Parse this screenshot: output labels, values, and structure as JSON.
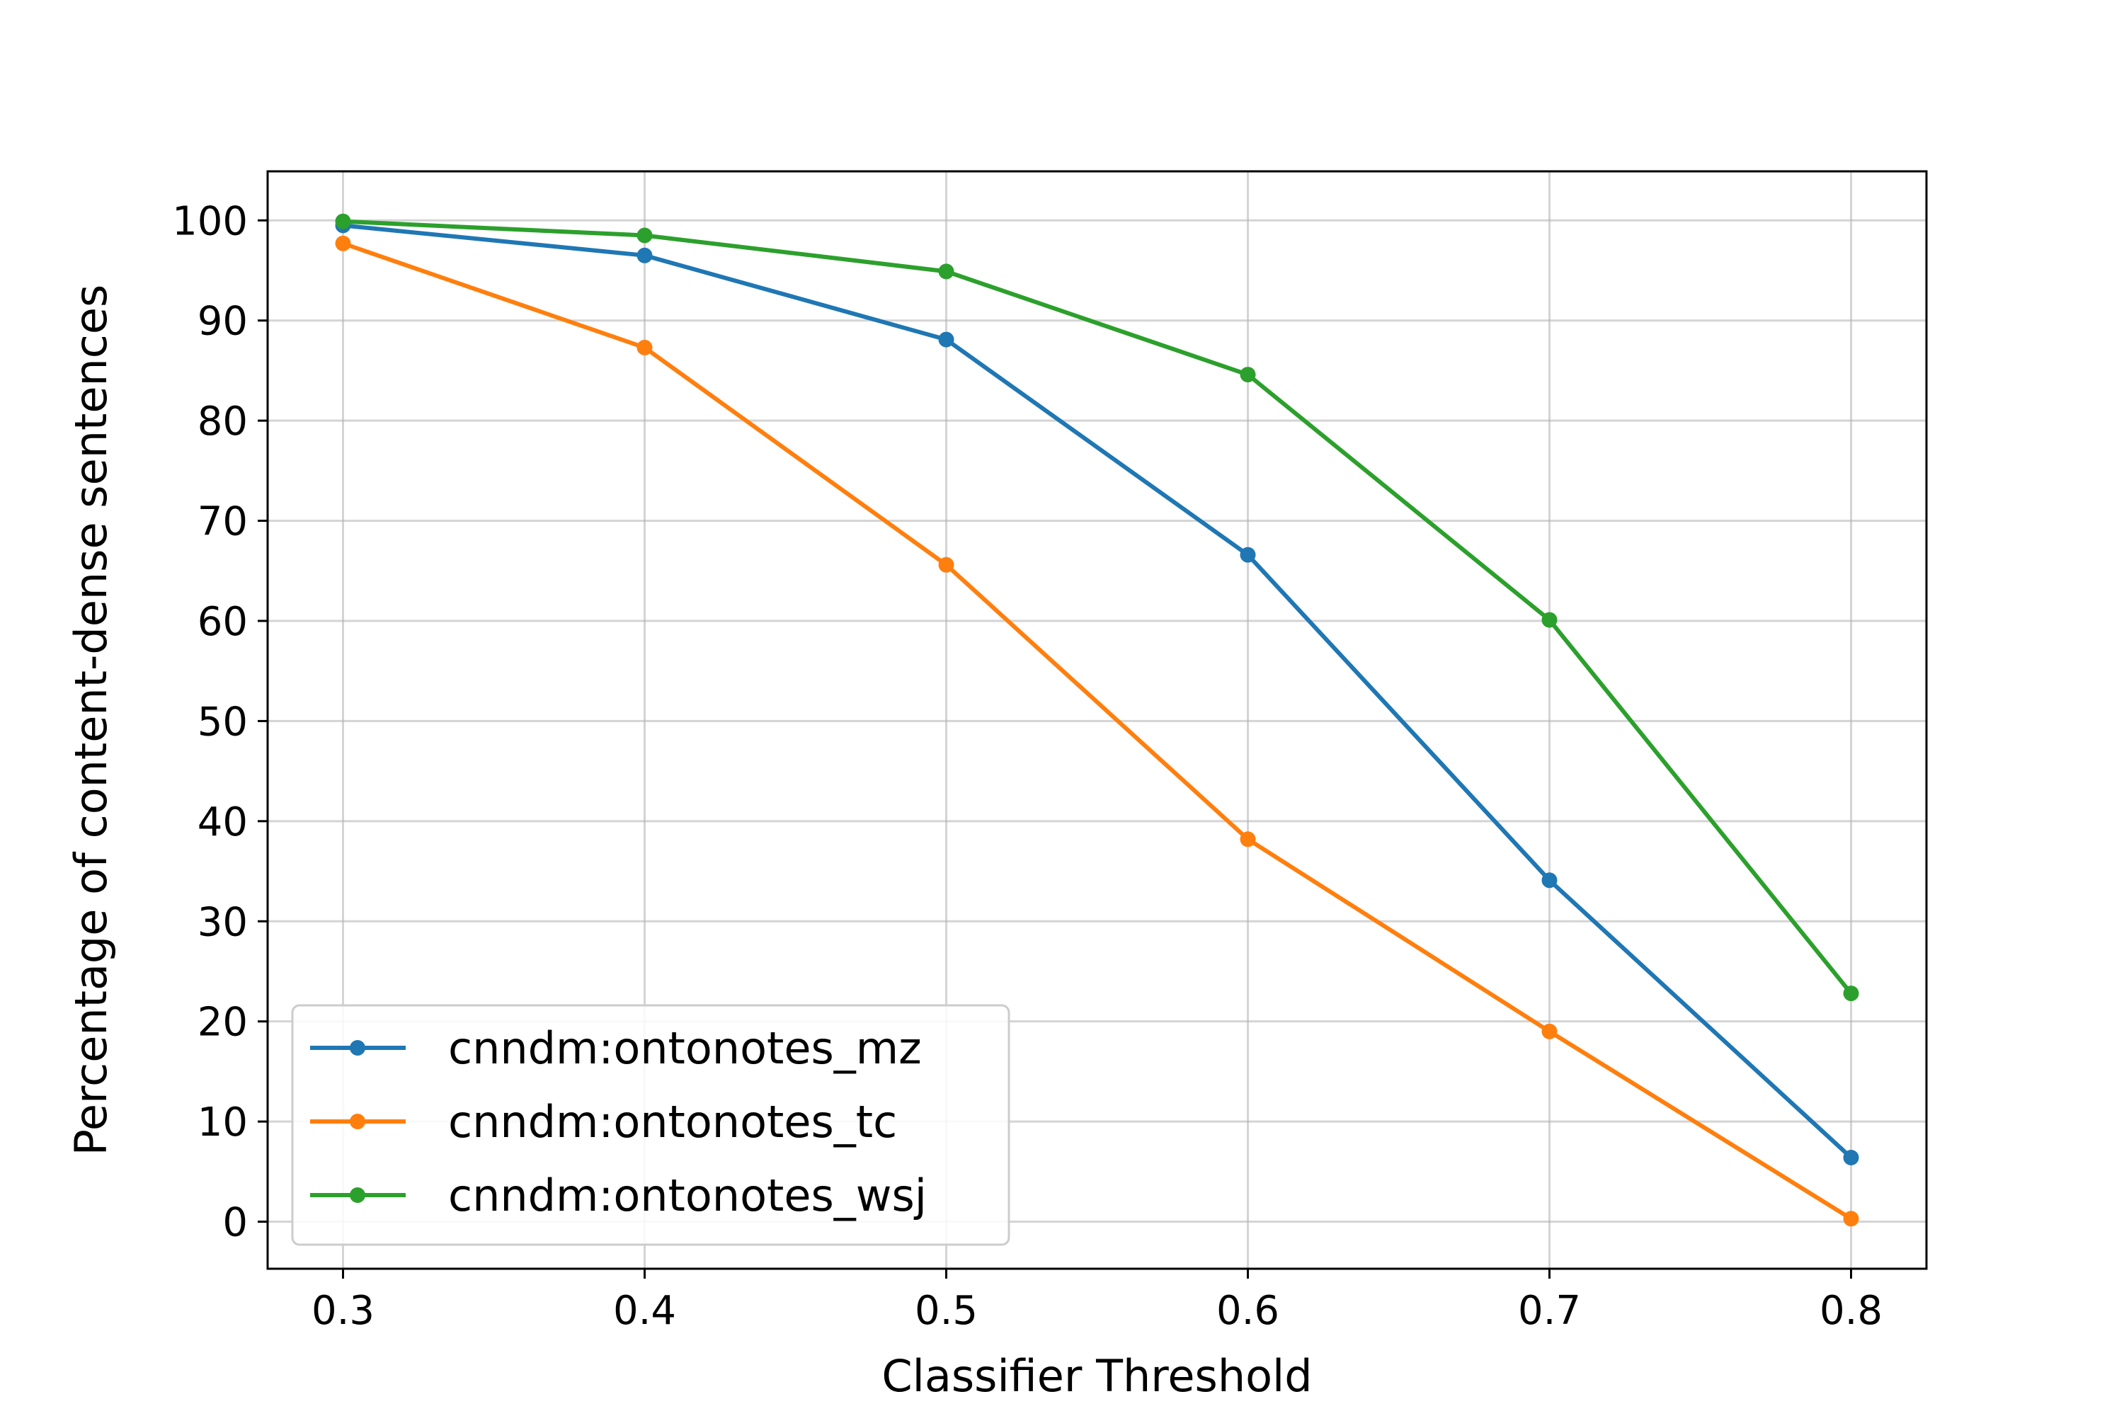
{
  "chart_data": {
    "type": "line",
    "title": "",
    "xlabel": "Classifier Threshold",
    "ylabel": "Percentage of content-dense sentences",
    "x": [
      0.3,
      0.4,
      0.5,
      0.6,
      0.7,
      0.8
    ],
    "x_tick_labels": [
      "0.3",
      "0.4",
      "0.5",
      "0.6",
      "0.7",
      "0.8"
    ],
    "y_ticks": [
      0,
      10,
      20,
      30,
      40,
      50,
      60,
      70,
      80,
      90,
      100
    ],
    "y_tick_labels": [
      "0",
      "10",
      "20",
      "30",
      "40",
      "50",
      "60",
      "70",
      "80",
      "90",
      "100"
    ],
    "xlim": [
      0.275,
      0.825
    ],
    "ylim": [
      -4.7,
      104.9
    ],
    "grid": true,
    "legend_position": "lower-left",
    "series": [
      {
        "name": "cnndm:ontonotes_mz",
        "color": "#1f77b4",
        "values": [
          99.5,
          96.5,
          88.1,
          66.6,
          34.1,
          6.4
        ]
      },
      {
        "name": "cnndm:ontonotes_tc",
        "color": "#ff7f0e",
        "values": [
          97.7,
          87.3,
          65.6,
          38.2,
          19.0,
          0.3
        ]
      },
      {
        "name": "cnndm:ontonotes_wsj",
        "color": "#2ca02c",
        "values": [
          99.9,
          98.5,
          94.9,
          84.6,
          60.1,
          22.8
        ]
      }
    ]
  }
}
